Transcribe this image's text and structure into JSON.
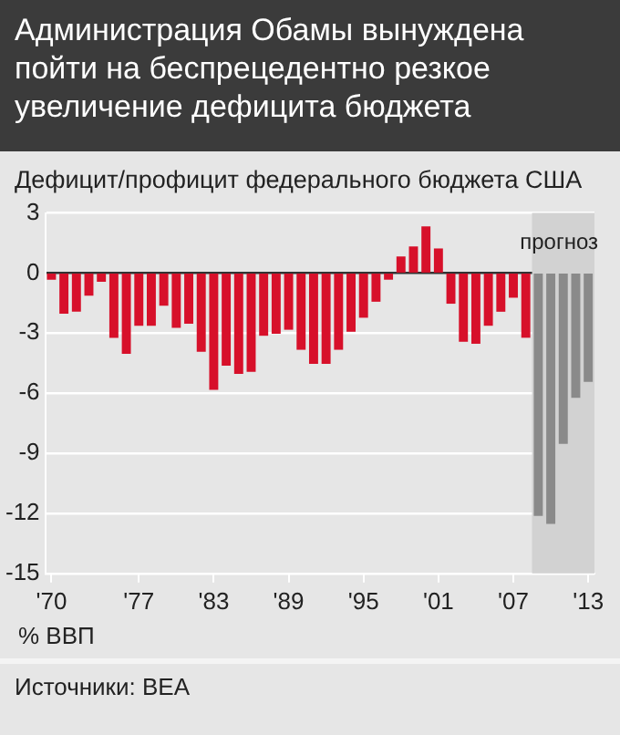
{
  "chart_data": {
    "type": "bar",
    "title": "Администрация Обамы вынуждена пойти на беспрецедентно резкое увеличение дефицита бюджета",
    "subtitle": "Дефицит/профицит федерального бюджета США",
    "xlabel": "% ВВП",
    "annotations": [
      "Источники: BEA"
    ],
    "x": [
      1970,
      1971,
      1972,
      1973,
      1974,
      1975,
      1976,
      1977,
      1978,
      1979,
      1980,
      1981,
      1982,
      1983,
      1984,
      1985,
      1986,
      1987,
      1988,
      1989,
      1990,
      1991,
      1992,
      1993,
      1994,
      1995,
      1996,
      1997,
      1998,
      1999,
      2000,
      2001,
      2002,
      2003,
      2004,
      2005,
      2006,
      2007,
      2008,
      2009,
      2010,
      2011,
      2012,
      2013
    ],
    "values": [
      -0.3,
      -2.0,
      -1.9,
      -1.1,
      -0.4,
      -3.2,
      -4.0,
      -2.6,
      -2.6,
      -1.6,
      -2.7,
      -2.5,
      -3.9,
      -5.8,
      -4.6,
      -5.0,
      -4.9,
      -3.1,
      -3.0,
      -2.8,
      -3.8,
      -4.5,
      -4.5,
      -3.8,
      -2.9,
      -2.2,
      -1.4,
      -0.3,
      0.8,
      1.3,
      2.3,
      1.2,
      -1.5,
      -3.4,
      -3.5,
      -2.6,
      -1.9,
      -1.2,
      -3.2,
      -12.1,
      -12.5,
      -8.5,
      -6.2,
      -5.4
    ],
    "colors": [
      "#d7102a",
      "#d7102a",
      "#d7102a",
      "#d7102a",
      "#d7102a",
      "#d7102a",
      "#d7102a",
      "#d7102a",
      "#d7102a",
      "#d7102a",
      "#d7102a",
      "#d7102a",
      "#d7102a",
      "#d7102a",
      "#d7102a",
      "#d7102a",
      "#d7102a",
      "#d7102a",
      "#d7102a",
      "#d7102a",
      "#d7102a",
      "#d7102a",
      "#d7102a",
      "#d7102a",
      "#d7102a",
      "#d7102a",
      "#d7102a",
      "#d7102a",
      "#d7102a",
      "#d7102a",
      "#d7102a",
      "#d7102a",
      "#d7102a",
      "#d7102a",
      "#d7102a",
      "#d7102a",
      "#d7102a",
      "#d7102a",
      "#d7102a",
      "#8a8a8a",
      "#8a8a8a",
      "#8a8a8a",
      "#8a8a8a",
      "#8a8a8a"
    ],
    "xlim": [
      1969.5,
      2013.5
    ],
    "xticks": [
      {
        "value": 1970,
        "label": "'70"
      },
      {
        "value": 1977,
        "label": "'77"
      },
      {
        "value": 1983,
        "label": "'83"
      },
      {
        "value": 1989,
        "label": "'89"
      },
      {
        "value": 1995,
        "label": "'95"
      },
      {
        "value": 2001,
        "label": "'01"
      },
      {
        "value": 2007,
        "label": "'07"
      },
      {
        "value": 2013,
        "label": "'13"
      }
    ],
    "ylim": [
      -15,
      3
    ],
    "yticks": [
      -15,
      -12,
      -9,
      -6,
      -3,
      0,
      3
    ],
    "bands": [
      {
        "axis": "x",
        "from": 2008.5,
        "to": 2013.5,
        "label": "прогноз",
        "color": "#d2d2d2"
      }
    ],
    "grid": "y",
    "legend": false
  }
}
